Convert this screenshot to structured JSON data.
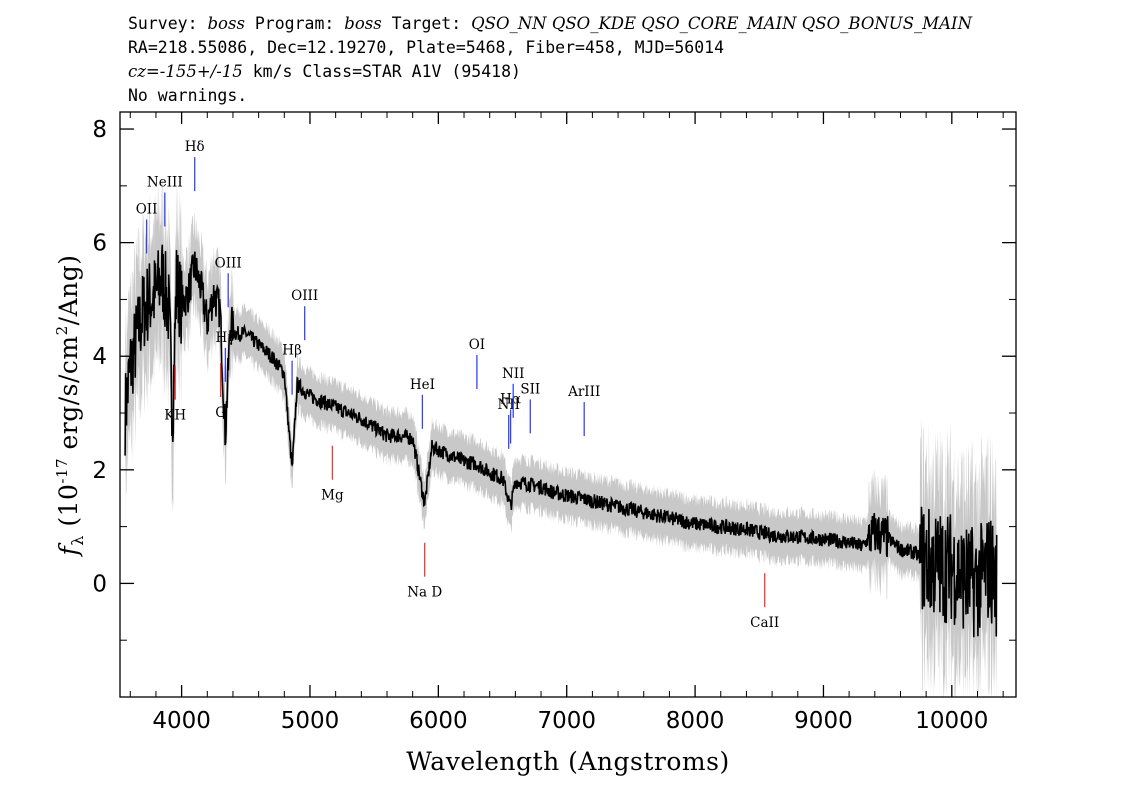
{
  "header": {
    "line1": {
      "p1": "Survey: ",
      "survey": "boss",
      "p2": " Program: ",
      "program": "boss",
      "p3": " Target: ",
      "target": "QSO_NN QSO_KDE QSO_CORE_MAIN QSO_BONUS_MAIN"
    },
    "line2": "RA=218.55086, Dec=12.19270, Plate=5468, Fiber=458, MJD=56014",
    "line3": {
      "cz": "cz=-155+/-15",
      "rest": " km/s Class=STAR A1V (95418)"
    },
    "line4": "No warnings."
  },
  "chart_data": {
    "type": "line",
    "xlabel": "Wavelength (Angstroms)",
    "ylabel": {
      "sym": "f",
      "sub": "λ",
      "text": " (10",
      "exp": "-17",
      "unit": " erg/s/cm",
      "exp2": "2",
      "tail": "/Ang)"
    },
    "xlim": [
      3520,
      10500
    ],
    "ylim": [
      -2,
      8.3
    ],
    "xticks": [
      4000,
      5000,
      6000,
      7000,
      8000,
      9000,
      10000
    ],
    "yticks": [
      0,
      2,
      4,
      6,
      8
    ],
    "colors": {
      "flux": "#000000",
      "error": "#c8c8c8",
      "emission": "#3344ff",
      "absorption": "#ff3333"
    },
    "series": [
      {
        "x": [
          3560,
          3600,
          3650,
          3700,
          3750,
          3800,
          3850,
          3900,
          3930,
          3960,
          4000,
          4050,
          4100,
          4150,
          4200,
          4250,
          4300,
          4340,
          4380,
          4420,
          4500,
          4600,
          4700,
          4800,
          4861,
          4900,
          5000,
          5100,
          5200,
          5300,
          5400,
          5500,
          5600,
          5700,
          5800,
          5893,
          5950,
          6000,
          6100,
          6200,
          6300,
          6400,
          6500,
          6563,
          6600,
          6700,
          6800,
          6900,
          7000,
          7200,
          7400,
          7600,
          7800,
          8000,
          8200,
          8400,
          8500,
          8600,
          8800,
          9000,
          9200,
          9300,
          9400,
          9500,
          9600,
          9700,
          9800,
          9900,
          10000,
          10100,
          10200,
          10300,
          10350
        ],
        "y": [
          3.0,
          3.8,
          4.3,
          4.8,
          5.0,
          5.1,
          5.4,
          4.8,
          3.0,
          5.3,
          4.9,
          5.1,
          5.6,
          5.2,
          4.6,
          5.1,
          4.8,
          2.6,
          4.6,
          4.4,
          4.4,
          4.2,
          4.0,
          3.7,
          2.0,
          3.5,
          3.3,
          3.2,
          3.1,
          3.0,
          2.9,
          2.75,
          2.6,
          2.6,
          2.55,
          1.4,
          2.4,
          2.35,
          2.25,
          2.15,
          2.1,
          1.95,
          1.85,
          1.35,
          1.8,
          1.75,
          1.7,
          1.6,
          1.55,
          1.45,
          1.35,
          1.25,
          1.15,
          1.05,
          1.0,
          0.95,
          0.9,
          0.85,
          0.82,
          0.78,
          0.72,
          0.65,
          0.9,
          0.8,
          0.6,
          0.55,
          0.4,
          0.3,
          0.3,
          0.1,
          0.0,
          0.3,
          0.0
        ]
      }
    ],
    "lines": [
      {
        "label": "OII",
        "x": 3727,
        "kind": "emission"
      },
      {
        "label": "NeIII",
        "x": 3869,
        "kind": "emission"
      },
      {
        "label": "Hδ",
        "x": 4102,
        "kind": "emission"
      },
      {
        "label": "Hγ",
        "x": 4341,
        "kind": "emission"
      },
      {
        "label": "OIII",
        "x": 4363,
        "kind": "emission"
      },
      {
        "label": "Hβ",
        "x": 4861,
        "kind": "emission"
      },
      {
        "label": "OIII",
        "x": 4959,
        "kind": "emission"
      },
      {
        "label": "HeI",
        "x": 5876,
        "kind": "emission"
      },
      {
        "label": "OI",
        "x": 6300,
        "kind": "emission"
      },
      {
        "label": "NII",
        "x": 6548,
        "kind": "emission"
      },
      {
        "label": "Hα",
        "x": 6563,
        "kind": "emission"
      },
      {
        "label": "NII",
        "x": 6583,
        "kind": "emission"
      },
      {
        "label": "SII",
        "x": 6716,
        "kind": "emission"
      },
      {
        "label": "ArIII",
        "x": 7136,
        "kind": "emission"
      },
      {
        "label": "KH",
        "x": 3950,
        "kind": "absorption"
      },
      {
        "label": "G",
        "x": 4304,
        "kind": "absorption"
      },
      {
        "label": "Mg",
        "x": 5175,
        "kind": "absorption"
      },
      {
        "label": "Na D",
        "x": 5894,
        "kind": "absorption"
      },
      {
        "label": "CaII",
        "x": 8542,
        "kind": "absorption"
      }
    ]
  }
}
